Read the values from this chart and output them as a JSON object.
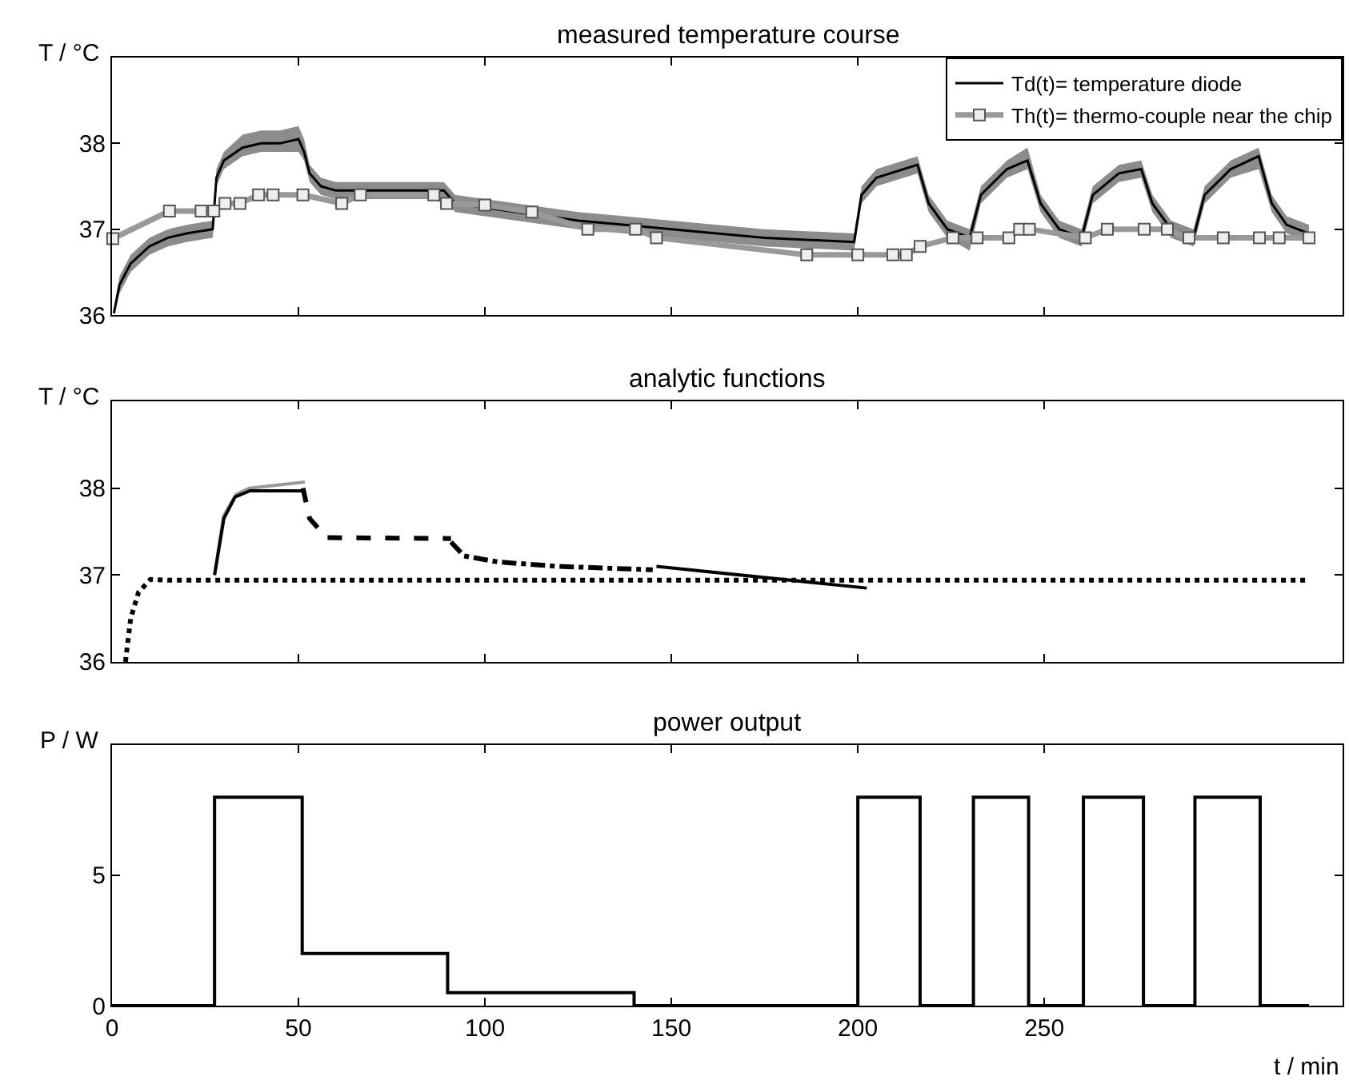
{
  "chart_data": [
    {
      "type": "line",
      "title": "measured temperature course",
      "ylabel": "T / °C",
      "xlim": [
        0,
        330
      ],
      "xticks": [
        0,
        50,
        100,
        150,
        200,
        250
      ],
      "ylim": [
        36,
        39
      ],
      "yticks": [
        36,
        37,
        38
      ],
      "tick_labels": "y",
      "legend": "top right",
      "series": [
        {
          "name": "Td(t)= temperature diode",
          "color": "#000000",
          "x": [
            0.5,
            2,
            5,
            10,
            15,
            20,
            27,
            28,
            30,
            35,
            40,
            45,
            50,
            51.5,
            53,
            56,
            60,
            75,
            89,
            92,
            100,
            125,
            150,
            175,
            199,
            201,
            205,
            216,
            219,
            224,
            230,
            233,
            240,
            245.5,
            249,
            254,
            260,
            263,
            270,
            276,
            279,
            284,
            290,
            293,
            300,
            307.5,
            311,
            315,
            321
          ],
          "values": [
            36.02,
            36.35,
            36.6,
            36.8,
            36.9,
            36.95,
            37.0,
            37.6,
            37.8,
            37.95,
            38.0,
            38.0,
            38.05,
            37.9,
            37.65,
            37.5,
            37.45,
            37.45,
            37.45,
            37.3,
            37.25,
            37.1,
            37.0,
            36.9,
            36.85,
            37.4,
            37.6,
            37.75,
            37.3,
            37.0,
            36.9,
            37.4,
            37.7,
            37.8,
            37.3,
            37.0,
            36.9,
            37.4,
            37.65,
            37.7,
            37.3,
            37.0,
            36.9,
            37.4,
            37.7,
            37.85,
            37.3,
            37.05,
            36.95
          ],
          "lower": [
            36.0,
            36.25,
            36.5,
            36.7,
            36.8,
            36.85,
            36.9,
            37.5,
            37.7,
            37.85,
            37.9,
            37.9,
            37.9,
            37.8,
            37.55,
            37.4,
            37.35,
            37.35,
            37.35,
            37.2,
            37.15,
            37.0,
            36.9,
            36.8,
            36.75,
            37.3,
            37.5,
            37.65,
            37.2,
            36.9,
            36.75,
            37.3,
            37.6,
            37.7,
            37.2,
            36.9,
            36.8,
            37.3,
            37.55,
            37.6,
            37.2,
            36.9,
            36.8,
            37.3,
            37.6,
            37.7,
            37.2,
            36.95,
            36.85
          ],
          "upper": [
            36.05,
            36.45,
            36.7,
            36.9,
            37.0,
            37.05,
            37.1,
            37.7,
            37.9,
            38.1,
            38.15,
            38.15,
            38.2,
            38.05,
            37.75,
            37.6,
            37.55,
            37.55,
            37.55,
            37.4,
            37.35,
            37.2,
            37.1,
            37.0,
            36.95,
            37.5,
            37.7,
            37.85,
            37.4,
            37.1,
            37.0,
            37.5,
            37.8,
            37.95,
            37.4,
            37.1,
            37.0,
            37.5,
            37.75,
            37.8,
            37.4,
            37.1,
            37.0,
            37.5,
            37.8,
            37.95,
            37.4,
            37.15,
            37.05
          ]
        },
        {
          "name": "Th(t)= thermo-couple near the chip",
          "color": "#999999",
          "marker": "square",
          "x": [
            0.2,
            15.4,
            23.9,
            27.3,
            30.3,
            34.3,
            39.3,
            43.2,
            51.2,
            61.6,
            66.6,
            86.3,
            89.7,
            100,
            112.6,
            127.6,
            140.4,
            146,
            186.3,
            200,
            209.4,
            213,
            216.7,
            225.5,
            232,
            240.5,
            243.4,
            246,
            261,
            266.9,
            276.8,
            283,
            288.8,
            298,
            307.7,
            313,
            321
          ],
          "values": [
            36.89,
            37.21,
            37.21,
            37.21,
            37.3,
            37.3,
            37.4,
            37.4,
            37.4,
            37.3,
            37.4,
            37.4,
            37.3,
            37.28,
            37.2,
            37.0,
            37.0,
            36.9,
            36.7,
            36.7,
            36.7,
            36.7,
            36.8,
            36.9,
            36.9,
            36.9,
            37.0,
            37.0,
            36.9,
            37.0,
            37.0,
            37.0,
            36.9,
            36.9,
            36.9,
            36.9,
            36.9
          ]
        }
      ]
    },
    {
      "type": "line",
      "title": "analytic functions",
      "ylabel": "T / °C",
      "xlim": [
        0,
        330
      ],
      "xticks": [
        0,
        50,
        100,
        150,
        200,
        250
      ],
      "ylim": [
        36,
        39
      ],
      "yticks": [
        36,
        37,
        38
      ],
      "tick_labels": "y",
      "series": [
        {
          "color": "#000000",
          "line_style": "dotted",
          "x": [
            3.6,
            5,
            7.1,
            10.3,
            15,
            321
          ],
          "values": [
            36.0,
            36.5,
            36.8,
            36.95,
            36.94,
            36.94
          ]
        },
        {
          "color": "#999999",
          "line_style": "solid",
          "x": [
            27.5,
            29.9,
            33.3,
            36.8,
            51.7
          ],
          "values": [
            37.0,
            37.68,
            37.93,
            38.0,
            38.07
          ]
        },
        {
          "color": "#000000",
          "line_style": "solid",
          "x": [
            27.5,
            30,
            33,
            37,
            51.5
          ],
          "values": [
            37.0,
            37.65,
            37.9,
            37.97,
            37.97
          ]
        },
        {
          "color": "#000000",
          "line_style": "dashed",
          "x": [
            51.2,
            53,
            57.6,
            90.9
          ],
          "values": [
            38.0,
            37.65,
            37.43,
            37.42
          ]
        },
        {
          "color": "#000000",
          "line_style": "dashdot",
          "x": [
            90.9,
            94.4,
            103.6,
            119.7,
            145
          ],
          "values": [
            37.38,
            37.22,
            37.15,
            37.1,
            37.06
          ]
        },
        {
          "color": "#000000",
          "line_style": "solid",
          "x": [
            146,
            202.4
          ],
          "values": [
            37.1,
            36.85
          ]
        }
      ]
    },
    {
      "type": "step",
      "title": "power output",
      "ylabel": "P / W",
      "xlabel": "t / min",
      "xlim": [
        0,
        330
      ],
      "xticks": [
        0,
        50,
        100,
        150,
        200,
        250
      ],
      "ylim": [
        0,
        10
      ],
      "yticks": [
        0,
        5
      ],
      "series": [
        {
          "color": "#000000",
          "x": [
            0,
            27.5,
            51,
            90,
            140,
            200,
            216.7,
            231,
            245.8,
            260.5,
            276.6,
            290.4,
            307.9,
            321
          ],
          "values": [
            0,
            8,
            2,
            0.5,
            0,
            8,
            0,
            8,
            0,
            8,
            0,
            8,
            0,
            0
          ]
        }
      ]
    }
  ]
}
